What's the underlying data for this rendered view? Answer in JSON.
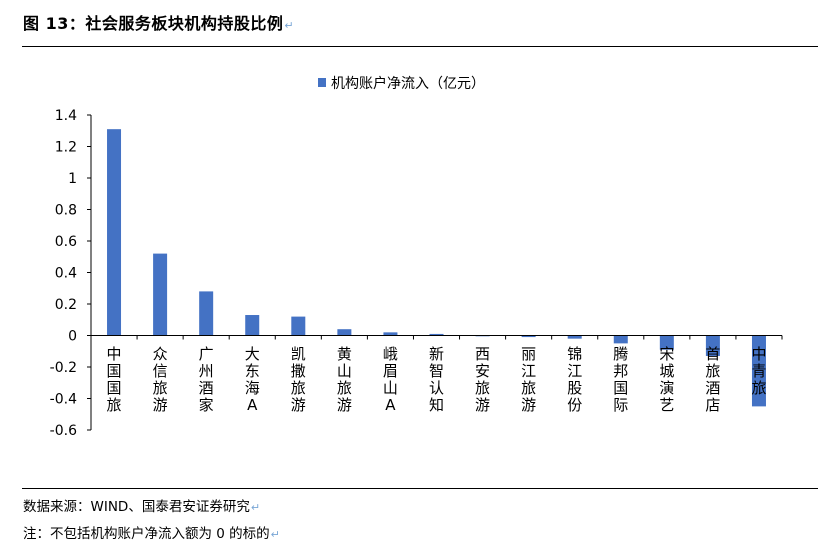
{
  "figure": {
    "title": "图 13：社会服务板块机构持股比例",
    "source": "数据来源：WIND、国泰君安证券研究",
    "note": "注：不包括机构账户净流入额为 0 的标的"
  },
  "chart_data": {
    "type": "bar",
    "title": "",
    "xlabel": "",
    "ylabel": "",
    "categories": [
      "中国国旅",
      "众信旅游",
      "广州酒家",
      "大东海A",
      "凯撒旅游",
      "黄山旅游",
      "峨眉山A",
      "新智认知",
      "西安旅游",
      "丽江旅游",
      "锦江股份",
      "腾邦国际",
      "宋城演艺",
      "首旅酒店",
      "中青旅"
    ],
    "series": [
      {
        "name": "机构账户净流入（亿元）",
        "color": "#4472c4",
        "values": [
          1.31,
          0.52,
          0.28,
          0.13,
          0.12,
          0.04,
          0.02,
          0.01,
          -0.005,
          -0.01,
          -0.02,
          -0.05,
          -0.09,
          -0.13,
          -0.45
        ]
      }
    ],
    "ylim": [
      -0.6,
      1.4
    ],
    "yticks": [
      -0.6,
      -0.4,
      -0.2,
      0,
      0.2,
      0.4,
      0.6,
      0.8,
      1,
      1.2,
      1.4
    ],
    "ytick_labels": [
      "-0.6",
      "-0.4",
      "-0.2",
      "0",
      "0.2",
      "0.4",
      "0.6",
      "0.8",
      "1",
      "1.2",
      "1.4"
    ],
    "grid": false,
    "legend_position": "top-center"
  }
}
